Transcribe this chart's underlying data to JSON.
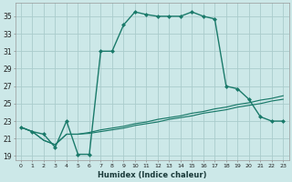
{
  "xlabel": "Humidex (Indice chaleur)",
  "background_color": "#cce8e8",
  "grid_color": "#aacccc",
  "line_color": "#1a7a6a",
  "x_ticks": [
    0,
    1,
    2,
    3,
    4,
    5,
    6,
    7,
    8,
    9,
    10,
    11,
    12,
    13,
    14,
    15,
    16,
    17,
    18,
    19,
    20,
    21,
    22,
    23
  ],
  "y_ticks": [
    19,
    21,
    23,
    25,
    27,
    29,
    31,
    33,
    35
  ],
  "xlim": [
    -0.5,
    23.5
  ],
  "ylim": [
    18.5,
    36.5
  ],
  "series": {
    "line1": {
      "x": [
        0,
        1,
        2,
        3,
        4,
        5,
        6,
        7,
        8,
        9,
        10,
        11,
        12,
        13,
        14,
        15,
        16,
        17,
        18,
        19,
        20,
        21,
        22,
        23
      ],
      "y": [
        22.3,
        21.8,
        21.5,
        20.0,
        23.0,
        19.2,
        19.2,
        31.0,
        31.0,
        34.0,
        35.5,
        35.2,
        35.0,
        35.0,
        35.0,
        35.5,
        35.0,
        34.7,
        27.0,
        26.7,
        25.5,
        23.5,
        23.0,
        23.0
      ]
    },
    "line2": {
      "x": [
        0,
        1,
        2,
        3,
        4,
        5,
        6,
        7,
        8,
        9,
        10,
        11,
        12,
        13,
        14,
        15,
        16,
        17,
        18,
        19,
        20,
        21,
        22,
        23
      ],
      "y": [
        22.3,
        21.8,
        20.8,
        20.3,
        21.5,
        21.5,
        21.7,
        22.0,
        22.2,
        22.4,
        22.7,
        22.9,
        23.2,
        23.4,
        23.6,
        23.9,
        24.1,
        24.4,
        24.6,
        24.9,
        25.1,
        25.4,
        25.6,
        25.9
      ]
    },
    "line3": {
      "x": [
        0,
        1,
        2,
        3,
        4,
        5,
        6,
        7,
        8,
        9,
        10,
        11,
        12,
        13,
        14,
        15,
        16,
        17,
        18,
        19,
        20,
        21,
        22,
        23
      ],
      "y": [
        22.3,
        21.8,
        20.8,
        20.3,
        21.5,
        21.5,
        21.6,
        21.8,
        22.0,
        22.2,
        22.5,
        22.7,
        22.9,
        23.2,
        23.4,
        23.6,
        23.9,
        24.1,
        24.3,
        24.6,
        24.8,
        25.0,
        25.3,
        25.5
      ]
    }
  }
}
